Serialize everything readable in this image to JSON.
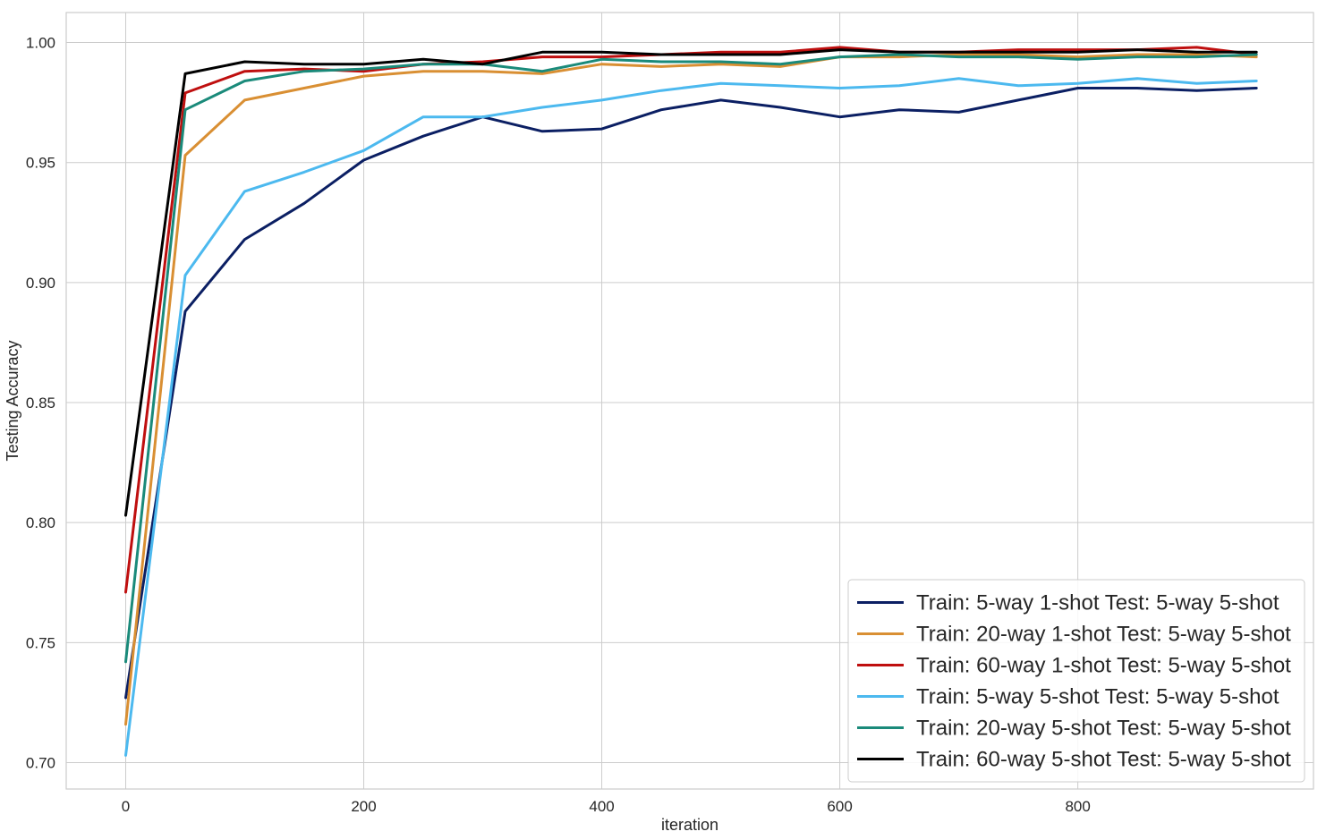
{
  "chart_data": {
    "type": "line",
    "xlabel": "iteration",
    "ylabel": "Testing Accuracy",
    "xlim": [
      -50,
      998
    ],
    "ylim": [
      0.689,
      1.0125
    ],
    "xticks": [
      0,
      200,
      400,
      600,
      800
    ],
    "xtick_labels": [
      "0",
      "200",
      "400",
      "600",
      "800"
    ],
    "yticks": [
      0.7,
      0.75,
      0.8,
      0.85,
      0.9,
      0.95,
      1.0
    ],
    "ytick_labels": [
      "0.70",
      "0.75",
      "0.80",
      "0.85",
      "0.90",
      "0.95",
      "1.00"
    ],
    "grid": true,
    "legend_position": "bottom-right",
    "x": [
      0,
      50,
      100,
      150,
      200,
      250,
      300,
      350,
      400,
      450,
      500,
      550,
      600,
      650,
      700,
      750,
      800,
      850,
      900,
      950
    ],
    "series": [
      {
        "name": "Train: 5-way 1-shot Test: 5-way 5-shot",
        "color": "#0b1f63",
        "values": [
          0.727,
          0.888,
          0.918,
          0.933,
          0.951,
          0.961,
          0.969,
          0.963,
          0.964,
          0.972,
          0.976,
          0.973,
          0.969,
          0.972,
          0.971,
          0.976,
          0.981,
          0.981,
          0.98,
          0.981
        ]
      },
      {
        "name": "Train: 20-way 1-shot Test: 5-way 5-shot",
        "color": "#d98f33",
        "values": [
          0.716,
          0.953,
          0.976,
          0.981,
          0.986,
          0.988,
          0.988,
          0.987,
          0.991,
          0.99,
          0.991,
          0.99,
          0.994,
          0.994,
          0.995,
          0.995,
          0.994,
          0.995,
          0.995,
          0.994
        ]
      },
      {
        "name": "Train: 60-way 1-shot Test: 5-way 5-shot",
        "color": "#bf0f0f",
        "values": [
          0.771,
          0.979,
          0.988,
          0.989,
          0.988,
          0.991,
          0.992,
          0.994,
          0.994,
          0.995,
          0.996,
          0.996,
          0.998,
          0.996,
          0.996,
          0.997,
          0.997,
          0.997,
          0.998,
          0.995
        ]
      },
      {
        "name": "Train: 5-way 5-shot Test: 5-way 5-shot",
        "color": "#4cb9ef",
        "values": [
          0.703,
          0.903,
          0.938,
          0.946,
          0.955,
          0.969,
          0.969,
          0.973,
          0.976,
          0.98,
          0.983,
          0.982,
          0.981,
          0.982,
          0.985,
          0.982,
          0.983,
          0.985,
          0.983,
          0.984
        ]
      },
      {
        "name": "Train: 20-way 5-shot Test: 5-way 5-shot",
        "color": "#1a8a7a",
        "values": [
          0.742,
          0.972,
          0.984,
          0.988,
          0.989,
          0.991,
          0.991,
          0.988,
          0.993,
          0.992,
          0.992,
          0.991,
          0.994,
          0.995,
          0.994,
          0.994,
          0.993,
          0.994,
          0.994,
          0.995
        ]
      },
      {
        "name": "Train: 60-way 5-shot Test: 5-way 5-shot",
        "color": "#000000",
        "values": [
          0.803,
          0.987,
          0.992,
          0.991,
          0.991,
          0.993,
          0.991,
          0.996,
          0.996,
          0.995,
          0.995,
          0.995,
          0.997,
          0.996,
          0.996,
          0.996,
          0.996,
          0.997,
          0.996,
          0.996
        ]
      }
    ]
  }
}
